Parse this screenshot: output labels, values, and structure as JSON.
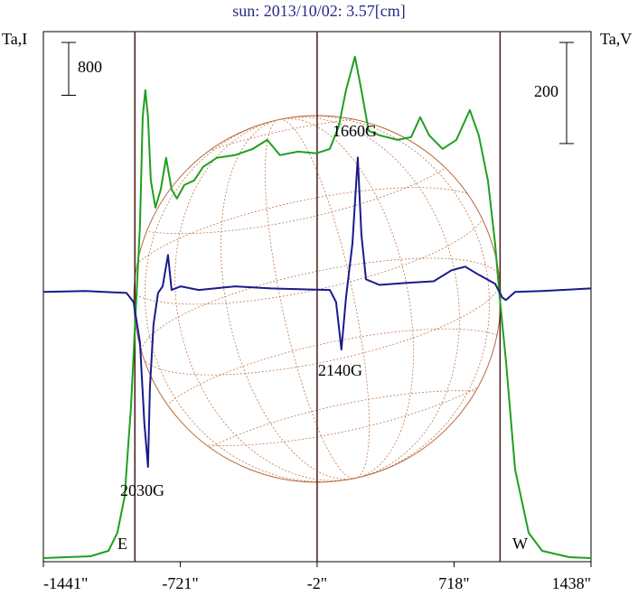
{
  "chart_data": {
    "type": "line",
    "title": "sun: 2013/10/02: 3.57[cm]",
    "ylabel": "Ta,I",
    "y2label": "Ta,V",
    "xlim": [
      -1441,
      1438
    ],
    "xticks": [
      {
        "value": -1441,
        "label": "-1441\""
      },
      {
        "value": -721,
        "label": "-721\""
      },
      {
        "value": -2,
        "label": "-2\""
      },
      {
        "value": 718,
        "label": "718\""
      },
      {
        "value": 1438,
        "label": "1438\""
      }
    ],
    "ylim": [
      0,
      8000
    ],
    "y2lim": [
      -530,
      515
    ],
    "scale_bar_left": 800,
    "scale_bar_right": 200,
    "vertical_lines": [
      -960,
      -2,
      960
    ],
    "annotations": [
      "1660G",
      "2140G",
      "2030G",
      "E",
      "W"
    ],
    "series": [
      {
        "name": "I",
        "color": "#1fa01f",
        "x": [
          -1441,
          -1194,
          -1099,
          -1052,
          -1014,
          -980,
          -957,
          -933,
          -919,
          -905,
          -891,
          -876,
          -852,
          -824,
          -796,
          -767,
          -739,
          -700,
          -648,
          -601,
          -530,
          -434,
          -340,
          -264,
          -197,
          -102,
          -7,
          65,
          112,
          150,
          197,
          231,
          269,
          326,
          421,
          492,
          540,
          587,
          658,
          730,
          801,
          848,
          896,
          934,
          958,
          991,
          1039,
          1110,
          1181,
          1324,
          1438
        ],
        "values": [
          27,
          55,
          137,
          410,
          958,
          2326,
          3694,
          5062,
          6703,
          7114,
          6703,
          5746,
          5335,
          5609,
          6088,
          5609,
          5472,
          5677,
          5746,
          5951,
          6088,
          6129,
          6224,
          6361,
          6129,
          6183,
          6156,
          6224,
          6566,
          7114,
          7620,
          7114,
          6498,
          6430,
          6361,
          6402,
          6703,
          6430,
          6224,
          6361,
          6812,
          6430,
          5746,
          4788,
          3967,
          3010,
          1368,
          410,
          137,
          41,
          27
        ]
      },
      {
        "name": "V",
        "color": "#1a1a8c",
        "axis": "y2",
        "x": [
          -1441,
          -1218,
          -1004,
          -967,
          -933,
          -910,
          -891,
          -881,
          -862,
          -838,
          -814,
          -786,
          -767,
          -719,
          -624,
          -434,
          -244,
          -55,
          65,
          98,
          126,
          150,
          184,
          212,
          231,
          255,
          326,
          468,
          611,
          706,
          777,
          848,
          934,
          972,
          991,
          1039,
          1181,
          1438
        ],
        "values": [
          0,
          2,
          -2,
          -20,
          -100,
          -261,
          -346,
          -189,
          -64,
          -2,
          11,
          73,
          4,
          11,
          4,
          11,
          7,
          5,
          4,
          -20,
          -114,
          -11,
          96,
          266,
          114,
          25,
          14,
          18,
          21,
          43,
          50,
          34,
          16,
          -11,
          -16,
          0,
          2,
          7
        ]
      }
    ]
  }
}
